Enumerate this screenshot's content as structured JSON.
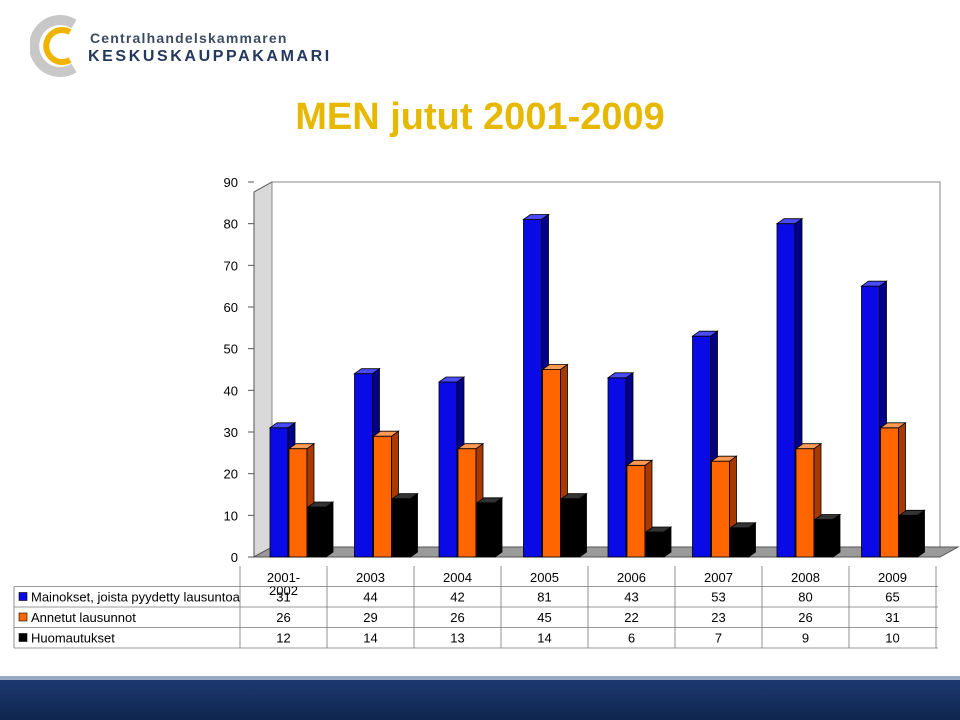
{
  "logo": {
    "line1": "Centralhandelskammaren",
    "line2": "KESKUSKAUPPAKAMARI"
  },
  "title": "MEN jutut 2001-2009",
  "colors": {
    "title": "#e6b800",
    "series": [
      "#0a0ae6",
      "#ff6600",
      "#000000"
    ],
    "band": "#1c3a6e"
  },
  "chart_data": {
    "type": "bar",
    "title": "MEN jutut 2001-2009",
    "categories": [
      "2001-2002",
      "2003",
      "2004",
      "2005",
      "2006",
      "2007",
      "2008",
      "2009"
    ],
    "category_lines": [
      [
        "2001-",
        "2002"
      ],
      [
        "2003"
      ],
      [
        "2004"
      ],
      [
        "2005"
      ],
      [
        "2006"
      ],
      [
        "2007"
      ],
      [
        "2008"
      ],
      [
        "2009"
      ]
    ],
    "series": [
      {
        "name": "Mainokset, joista pyydetty lausuntoa",
        "values": [
          31,
          44,
          42,
          81,
          43,
          53,
          80,
          65
        ]
      },
      {
        "name": "Annetut lausunnot",
        "values": [
          26,
          29,
          26,
          45,
          22,
          23,
          26,
          31
        ]
      },
      {
        "name": "Huomautukset",
        "values": [
          12,
          14,
          13,
          14,
          6,
          7,
          9,
          10
        ]
      }
    ],
    "ylim": [
      0,
      90
    ],
    "yticks": [
      0,
      10,
      20,
      30,
      40,
      50,
      60,
      70,
      80,
      90
    ],
    "grid": false,
    "legend": "data table below chart",
    "style": "3d clustered columns"
  }
}
